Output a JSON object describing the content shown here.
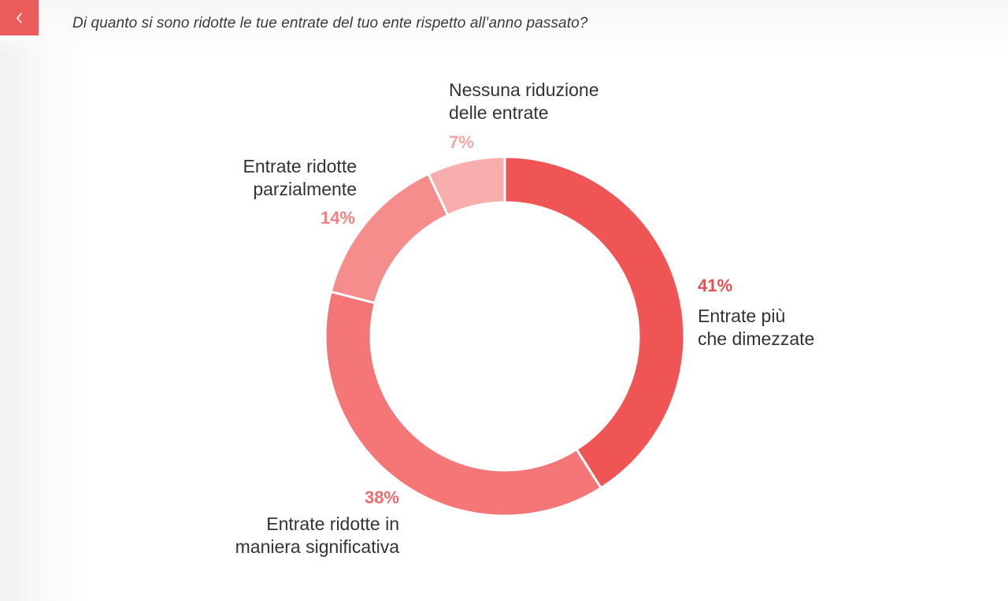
{
  "header": {
    "question": "Di quanto si sono ridotte le tue entrate del tuo ente rispetto all’anno passato?",
    "back_icon": "chevron-left-icon"
  },
  "colors": {
    "accent": "#ec5c5c"
  },
  "chart_data": {
    "type": "pie",
    "variant": "donut",
    "title": "",
    "slices": [
      {
        "label_line1": "Entrate più",
        "label_line2": "che dimezzate",
        "value": 41,
        "value_label": "41%",
        "color": "#f05555",
        "label_color": "#ec4e4e"
      },
      {
        "label_line1": "Entrate ridotte in",
        "label_line2": "maniera significativa",
        "value": 38,
        "value_label": "38%",
        "color": "#f47676",
        "label_color": "#f06a6a"
      },
      {
        "label_line1": "Entrate ridotte",
        "label_line2": "parzialmente",
        "value": 14,
        "value_label": "14%",
        "color": "#f68d8d",
        "label_color": "#f28282"
      },
      {
        "label_line1": "Nessuna riduzione",
        "label_line2": "delle entrate",
        "value": 7,
        "value_label": "7%",
        "color": "#f9aeae",
        "label_color": "#f5a5a5"
      }
    ]
  }
}
